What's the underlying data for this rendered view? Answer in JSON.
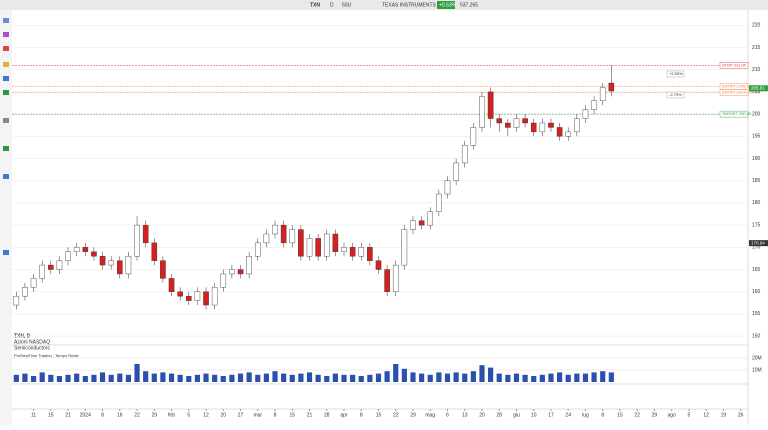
{
  "header": {
    "symbol": "TXN",
    "interval": "D",
    "size": "50U",
    "name": "TEXAS INSTRUMENTS INC.",
    "change": "+0.53%",
    "volume": "537.265"
  },
  "info": {
    "line1": "TXN, D",
    "line2": "Azioni NASDAQ",
    "line3": "Semiconductors",
    "source": "ProRealTime Trading - Tempo Reale"
  },
  "chart_data": {
    "type": "candlestick",
    "open": [
      157,
      159,
      161,
      163,
      166,
      165,
      167,
      169,
      170,
      169,
      168,
      166,
      167,
      164,
      168,
      175,
      171,
      167,
      163,
      160,
      159,
      158,
      160,
      157,
      161,
      164,
      165,
      164,
      168,
      171,
      173,
      175,
      171,
      174,
      168,
      172,
      168,
      173,
      169,
      170,
      168,
      170,
      167,
      165,
      160,
      166,
      174,
      176,
      175,
      178,
      182,
      185,
      189,
      193,
      197,
      205,
      199,
      198,
      197,
      199,
      198,
      196,
      198,
      197,
      195,
      196,
      199,
      201,
      203,
      207
    ],
    "high": [
      160,
      162,
      164,
      167,
      167,
      168,
      170,
      171,
      171,
      170,
      169,
      168,
      168,
      169,
      177,
      176,
      172,
      168,
      164,
      161,
      160,
      161,
      161,
      162,
      165,
      166,
      166,
      169,
      172,
      174,
      176,
      176,
      175,
      175,
      173,
      173,
      174,
      174,
      171,
      171,
      171,
      171,
      168,
      166,
      167,
      175,
      177,
      177,
      179,
      183,
      186,
      190,
      194,
      198,
      205,
      206,
      200,
      199,
      200,
      200,
      199,
      199,
      199,
      198,
      197,
      200,
      202,
      204,
      207,
      211
    ],
    "low": [
      156,
      158,
      160,
      162,
      164,
      164,
      166,
      168,
      168,
      167,
      165,
      165,
      163,
      163,
      167,
      170,
      166,
      162,
      159,
      158,
      157,
      157,
      156,
      156,
      160,
      163,
      163,
      163,
      167,
      170,
      172,
      170,
      170,
      167,
      167,
      167,
      167,
      168,
      168,
      167,
      167,
      166,
      164,
      159,
      159,
      165,
      173,
      174,
      174,
      177,
      181,
      184,
      188,
      192,
      196,
      197,
      196,
      195,
      196,
      197,
      195,
      195,
      196,
      194,
      194,
      195,
      198,
      200,
      202,
      204
    ],
    "close": [
      159,
      161,
      163,
      166,
      165,
      167,
      169,
      170,
      169,
      168,
      166,
      167,
      164,
      168,
      175,
      171,
      167,
      163,
      160,
      159,
      158,
      160,
      157,
      161,
      164,
      165,
      164,
      168,
      171,
      173,
      175,
      171,
      174,
      168,
      172,
      168,
      173,
      169,
      170,
      168,
      170,
      167,
      165,
      160,
      166,
      174,
      176,
      175,
      178,
      182,
      185,
      189,
      193,
      197,
      204,
      199,
      198,
      197,
      199,
      198,
      196,
      198,
      197,
      195,
      196,
      199,
      201,
      203,
      206,
      205.2
    ],
    "up_color": "#ffffff",
    "down_color": "#d42020",
    "xlim": [
      -0.5,
      84.5
    ],
    "xticks": [
      {
        "value": 2,
        "label": "11"
      },
      {
        "value": 4,
        "label": "15"
      },
      {
        "value": 6,
        "label": "21"
      },
      {
        "value": 8,
        "label": "2024"
      },
      {
        "value": 10,
        "label": "8"
      },
      {
        "value": 12,
        "label": "16"
      },
      {
        "value": 14,
        "label": "22"
      },
      {
        "value": 16,
        "label": "29"
      },
      {
        "value": 18,
        "label": "feb"
      },
      {
        "value": 20,
        "label": "5"
      },
      {
        "value": 22,
        "label": "12"
      },
      {
        "value": 24,
        "label": "20"
      },
      {
        "value": 26,
        "label": "27"
      },
      {
        "value": 28,
        "label": "mar"
      },
      {
        "value": 30,
        "label": "8"
      },
      {
        "value": 32,
        "label": "15"
      },
      {
        "value": 34,
        "label": "21"
      },
      {
        "value": 36,
        "label": "28"
      },
      {
        "value": 38,
        "label": "apr"
      },
      {
        "value": 40,
        "label": "8"
      },
      {
        "value": 42,
        "label": "15"
      },
      {
        "value": 44,
        "label": "22"
      },
      {
        "value": 46,
        "label": "29"
      },
      {
        "value": 48,
        "label": "mag"
      },
      {
        "value": 50,
        "label": "6"
      },
      {
        "value": 52,
        "label": "13"
      },
      {
        "value": 54,
        "label": "20"
      },
      {
        "value": 56,
        "label": "28"
      },
      {
        "value": 58,
        "label": "giu"
      },
      {
        "value": 60,
        "label": "10"
      },
      {
        "value": 62,
        "label": "17"
      },
      {
        "value": 64,
        "label": "24"
      },
      {
        "value": 66,
        "label": "lug"
      },
      {
        "value": 68,
        "label": "8"
      },
      {
        "value": 70,
        "label": "15"
      },
      {
        "value": 72,
        "label": "22"
      },
      {
        "value": 74,
        "label": "29"
      },
      {
        "value": 76,
        "label": "ago"
      },
      {
        "value": 78,
        "label": "5"
      },
      {
        "value": 80,
        "label": "12"
      },
      {
        "value": 82,
        "label": "19"
      },
      {
        "value": 84,
        "label": "26"
      }
    ],
    "ylim": [
      148,
      223
    ],
    "yticks": [
      150,
      155,
      160,
      165,
      170,
      175,
      180,
      185,
      190,
      195,
      200,
      205,
      210,
      215,
      220
    ],
    "levels": [
      {
        "value": 211,
        "label": "STOP 211.00",
        "color": "#e03030"
      },
      {
        "value": 206.29,
        "label": "ENTRY LOW 206.29",
        "color": "#f08040"
      },
      {
        "value": 204.88,
        "label": "ENTRY HIGH 204.88",
        "color": "#f08040"
      },
      {
        "value": 200,
        "label": "TARGET 200.00",
        "color": "#2a9a3a"
      }
    ],
    "pct_labels": [
      "+2.55%",
      "-2.79%"
    ],
    "price_tags": [
      {
        "value": 205.81,
        "label": "205.81",
        "color": "#2ea043"
      },
      {
        "value": 170.94,
        "label": "170.94",
        "color": "#333333"
      }
    ],
    "volume": [
      6,
      7,
      5,
      8,
      6,
      5,
      6,
      7,
      5,
      6,
      8,
      6,
      7,
      6,
      15,
      9,
      7,
      8,
      7,
      6,
      5,
      6,
      7,
      6,
      5,
      6,
      7,
      8,
      6,
      7,
      9,
      7,
      6,
      7,
      8,
      6,
      5,
      7,
      6,
      6,
      5,
      6,
      7,
      9,
      15,
      11,
      8,
      7,
      6,
      8,
      7,
      8,
      7,
      9,
      14,
      12,
      7,
      6,
      7,
      6,
      5,
      6,
      7,
      8,
      6,
      7,
      7,
      8,
      9,
      8
    ],
    "volume_color": "#2b4fb0",
    "vlim": [
      0,
      20
    ],
    "vticks": [
      {
        "value": 10,
        "label": "10M"
      },
      {
        "value": 20,
        "label": "20M"
      }
    ]
  }
}
